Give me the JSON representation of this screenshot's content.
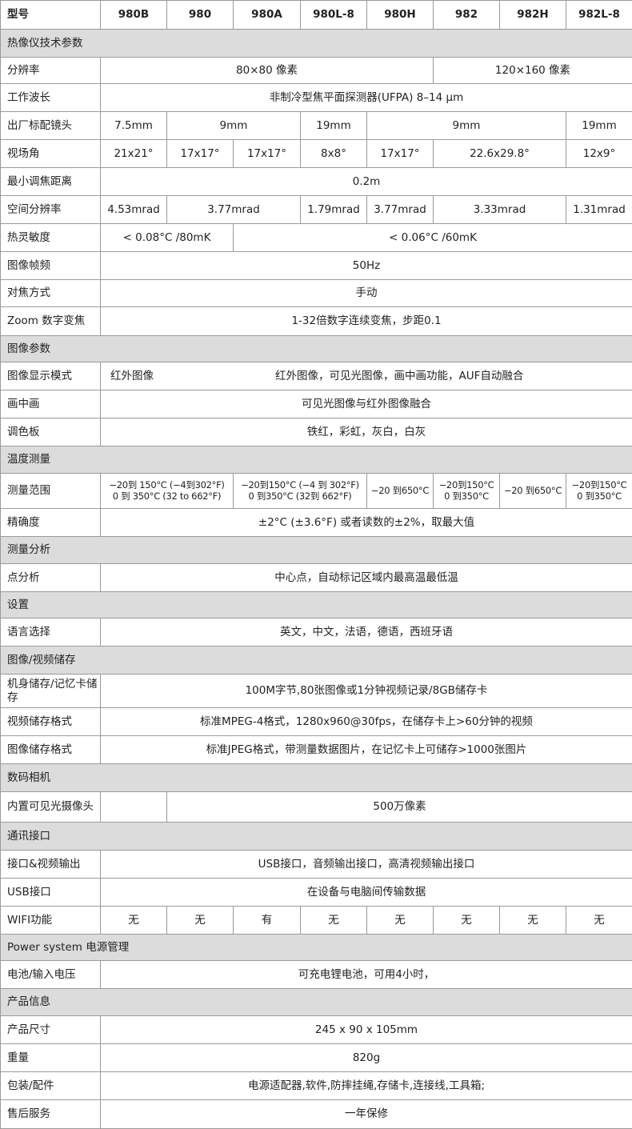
{
  "header": {
    "label": "型号",
    "models": [
      "980B",
      "980",
      "980A",
      "980L-8",
      "980H",
      "982",
      "982H",
      "982L-8"
    ]
  },
  "rows": [
    {
      "section": "热像仪技术参数"
    },
    {
      "label": "分辨率",
      "cells": [
        {
          "text": "80×80 像素",
          "span": 5
        },
        {
          "text": "120×160 像素",
          "span": 3
        }
      ]
    },
    {
      "label": "工作波长",
      "cells": [
        {
          "text": "非制冷型焦平面探测器(UFPA)  8–14 μm",
          "span": 8
        }
      ]
    },
    {
      "label": "出厂标配镜头",
      "cells": [
        {
          "text": "7.5mm",
          "span": 1
        },
        {
          "text": "9mm",
          "span": 2
        },
        {
          "text": "19mm",
          "span": 1
        },
        {
          "text": "9mm",
          "span": 3
        },
        {
          "text": "19mm",
          "span": 1
        }
      ]
    },
    {
      "label": "视场角",
      "cells": [
        {
          "text": "21x21°",
          "span": 1
        },
        {
          "text": "17x17°",
          "span": 1
        },
        {
          "text": "17x17°",
          "span": 1
        },
        {
          "text": "8x8°",
          "span": 1
        },
        {
          "text": "17x17°",
          "span": 1
        },
        {
          "text": "22.6x29.8°",
          "span": 2
        },
        {
          "text": "12x9°",
          "span": 1
        }
      ]
    },
    {
      "label": "最小调焦距离",
      "cells": [
        {
          "text": "0.2m",
          "span": 8
        }
      ]
    },
    {
      "label": "空间分辨率",
      "cells": [
        {
          "text": "4.53mrad",
          "span": 1
        },
        {
          "text": "3.77mrad",
          "span": 2
        },
        {
          "text": "1.79mrad",
          "span": 1
        },
        {
          "text": "3.77mrad",
          "span": 1
        },
        {
          "text": "3.33mrad",
          "span": 2
        },
        {
          "text": "1.31mrad",
          "span": 1
        }
      ]
    },
    {
      "label": "热灵敏度",
      "cells": [
        {
          "text": "< 0.08°C /80mK",
          "span": 2
        },
        {
          "text": "< 0.06°C /60mK",
          "span": 6
        }
      ]
    },
    {
      "label": "图像帧频",
      "cells": [
        {
          "text": "50Hz",
          "span": 8
        }
      ]
    },
    {
      "label": "对焦方式",
      "cells": [
        {
          "text": "手动",
          "span": 8
        }
      ]
    },
    {
      "label": "Zoom 数字变焦",
      "cells": [
        {
          "text": "1-32倍数字连续变焦，步距0.1",
          "span": 8
        }
      ]
    },
    {
      "section": "图像参数"
    },
    {
      "label": "图像显示模式",
      "cells": [
        {
          "text": "红外图像",
          "span": 1,
          "style": "nobr-r"
        },
        {
          "text": "红外图像，可见光图像，画中画功能，AUF自动融合",
          "span": 7,
          "style": "nobr-l"
        }
      ]
    },
    {
      "label": "画中画",
      "cells": [
        {
          "text": "可见光图像与红外图像融合",
          "span": 8
        }
      ]
    },
    {
      "label": "调色板",
      "cells": [
        {
          "text": "铁红，彩虹，灰白，白灰",
          "span": 8
        }
      ]
    },
    {
      "section": "温度测量"
    },
    {
      "label": "测量范围",
      "cells": [
        {
          "text": "−20到 150°C (−4到302°F)\n0 到 350°C (32 to 662°F)",
          "span": 2,
          "style": "small"
        },
        {
          "text": "−20到150°C (−4 到 302°F)\n0 到350°C (32到 662°F)",
          "span": 2,
          "style": "small"
        },
        {
          "text": "−20 到650°C",
          "span": 1,
          "style": "small"
        },
        {
          "text": "−20到150°C\n0 到350°C",
          "span": 1,
          "style": "small"
        },
        {
          "text": "−20 到650°C",
          "span": 1,
          "style": "small"
        },
        {
          "text": "−20到150°C\n0 到350°C",
          "span": 1,
          "style": "small"
        }
      ]
    },
    {
      "label": "精确度",
      "cells": [
        {
          "text": "±2°C (±3.6°F) 或者读数的±2%，取最大值",
          "span": 8
        }
      ]
    },
    {
      "section": "测量分析"
    },
    {
      "label": "点分析",
      "cells": [
        {
          "text": "中心点，自动标记区域内最高温最低温",
          "span": 8
        }
      ]
    },
    {
      "section": "设置"
    },
    {
      "label": "语言选择",
      "cells": [
        {
          "text": "英文，中文，法语，德语，西班牙语",
          "span": 8
        }
      ]
    },
    {
      "section": "图像/视频储存"
    },
    {
      "label": "机身储存/记忆卡储存",
      "cells": [
        {
          "text": "100M字节,80张图像或1分钟视频记录/8GB储存卡",
          "span": 8
        }
      ]
    },
    {
      "label": "视频储存格式",
      "cells": [
        {
          "text": "标准MPEG-4格式，1280x960@30fps，在储存卡上>60分钟的视频",
          "span": 8
        }
      ]
    },
    {
      "label": "图像储存格式",
      "cells": [
        {
          "text": "标准JPEG格式，带测量数据图片，在记忆卡上可储存>1000张图片",
          "span": 8
        }
      ]
    },
    {
      "section": "数码相机"
    },
    {
      "label": "内置可见光摄像头",
      "cells": [
        {
          "text": "",
          "span": 1
        },
        {
          "text": "500万像素",
          "span": 7
        }
      ]
    },
    {
      "section": "通讯接口"
    },
    {
      "label": "接口&视频输出",
      "cells": [
        {
          "text": "USB接口，音频输出接口，高清视频输出接口",
          "span": 8
        }
      ]
    },
    {
      "label": "USB接口",
      "cells": [
        {
          "text": "在设备与电脑间传输数据",
          "span": 8
        }
      ]
    },
    {
      "label": "WIFI功能",
      "cells": [
        {
          "text": "无",
          "span": 1
        },
        {
          "text": "无",
          "span": 1
        },
        {
          "text": "有",
          "span": 1
        },
        {
          "text": "无",
          "span": 1
        },
        {
          "text": "无",
          "span": 1
        },
        {
          "text": "无",
          "span": 1
        },
        {
          "text": "无",
          "span": 1
        },
        {
          "text": "无",
          "span": 1
        }
      ]
    },
    {
      "section": "Power system 电源管理"
    },
    {
      "label": "电池/输入电压",
      "cells": [
        {
          "text": "可充电锂电池，可用4小时，",
          "span": 8
        }
      ]
    },
    {
      "section": "产品信息"
    },
    {
      "label": "产品尺寸",
      "cells": [
        {
          "text": "245 x 90 x 105mm",
          "span": 8
        }
      ]
    },
    {
      "label": "重量",
      "cells": [
        {
          "text": "820g",
          "span": 8
        }
      ]
    },
    {
      "label": "包装/配件",
      "cells": [
        {
          "text": "电源适配器,软件,防摔挂绳,存储卡,连接线,工具箱;",
          "span": 8
        }
      ]
    },
    {
      "label": "售后服务",
      "cells": [
        {
          "text": "一年保修",
          "span": 8
        }
      ]
    }
  ]
}
